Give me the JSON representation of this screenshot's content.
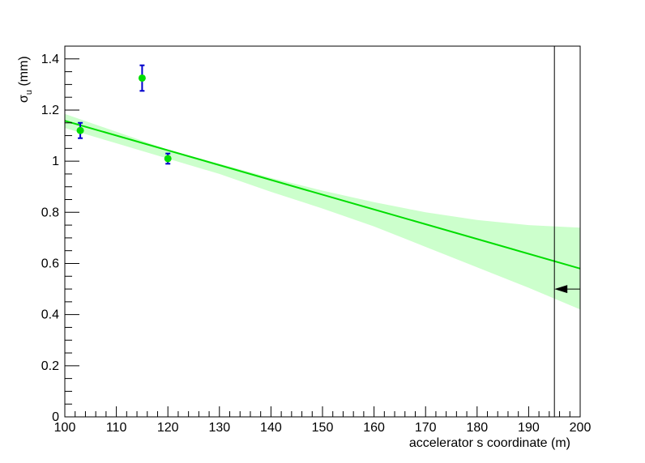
{
  "chart_data": {
    "type": "scatter",
    "xlabel": "accelerator s coordinate (m)",
    "ylabel_main": "σ",
    "ylabel_sub": "u",
    "ylabel_unit": " (mm)",
    "xlim": [
      100,
      200
    ],
    "ylim": [
      0,
      1.45
    ],
    "x_ticks": [
      100,
      110,
      120,
      130,
      140,
      150,
      160,
      170,
      180,
      190,
      200
    ],
    "x_tick_labels": [
      "100",
      "110",
      "120",
      "130",
      "140",
      "150",
      "160",
      "170",
      "180",
      "190",
      "200"
    ],
    "y_ticks": [
      0,
      0.2,
      0.4,
      0.6,
      0.8,
      1,
      1.2,
      1.4
    ],
    "y_tick_labels": [
      "0",
      "0.2",
      "0.4",
      "0.6",
      "0.8",
      "1",
      "1.2",
      "1.4"
    ],
    "points": [
      {
        "x": 103,
        "y": 1.12,
        "err": 0.03
      },
      {
        "x": 115,
        "y": 1.325,
        "err": 0.05
      },
      {
        "x": 120,
        "y": 1.01,
        "err": 0.02
      }
    ],
    "fit_line": {
      "x": [
        100,
        200
      ],
      "y": [
        1.158,
        0.58
      ],
      "color": "#00dd00"
    },
    "fit_band": {
      "x": [
        100,
        110,
        120,
        130,
        140,
        150,
        160,
        170,
        180,
        190,
        200
      ],
      "upper": [
        1.185,
        1.115,
        1.045,
        0.99,
        0.935,
        0.885,
        0.84,
        0.8,
        0.77,
        0.75,
        0.74
      ],
      "lower": [
        1.13,
        1.07,
        1.01,
        0.95,
        0.88,
        0.815,
        0.745,
        0.665,
        0.585,
        0.505,
        0.42
      ],
      "color": "#ccffcc"
    },
    "vertical_marker": {
      "x": 195
    },
    "arrow_marker": {
      "y": 0.5
    },
    "colors": {
      "point": "#00dd00",
      "error_bar": "#0000cc",
      "axis": "#000000"
    }
  }
}
